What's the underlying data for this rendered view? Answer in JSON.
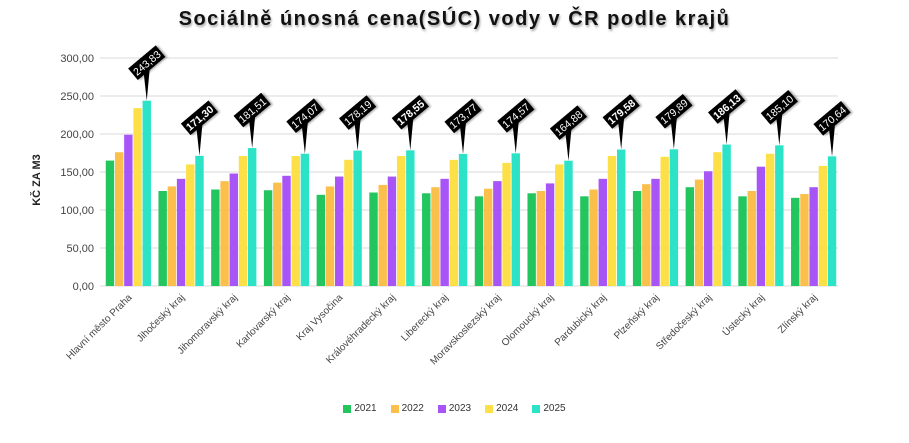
{
  "chart_data": {
    "type": "bar",
    "title": "Sociálně únosná cena(SÚC) vody v ČR podle krajů",
    "xlabel": "",
    "ylabel": "KČ ZA M3",
    "ylim": [
      0,
      300
    ],
    "yticks": [
      "0,00",
      "50,00",
      "100,00",
      "150,00",
      "200,00",
      "250,00",
      "300,00"
    ],
    "grid": true,
    "legend_position": "bottom",
    "categories": [
      "Hlavní město Praha",
      "Jihočeský kraj",
      "Jihomoravský kraj",
      "Karlovarský kraj",
      "Kraj Vysočina",
      "Královéhradecký kraj",
      "Liberecký kraj",
      "Moravskoslezský kraj",
      "Olomoucký kraj",
      "Pardubický kraj",
      "Plzeňský kraj",
      "Středočeský kraj",
      "Ústecký kraj",
      "Zlínský kraj"
    ],
    "series": [
      {
        "name": "2021",
        "color": "#22c55e",
        "values": [
          165,
          125,
          127,
          126,
          120,
          123,
          122,
          118,
          122,
          118,
          125,
          130,
          118,
          116
        ]
      },
      {
        "name": "2022",
        "color": "#fbbf4c",
        "values": [
          176,
          131,
          138,
          136,
          131,
          133,
          130,
          128,
          125,
          127,
          134,
          140,
          125,
          121
        ]
      },
      {
        "name": "2023",
        "color": "#a855f7",
        "values": [
          199,
          141,
          148,
          145,
          144,
          144,
          141,
          138,
          135,
          141,
          141,
          151,
          157,
          130
        ]
      },
      {
        "name": "2024",
        "color": "#fde047",
        "values": [
          234,
          160,
          171,
          171,
          166,
          171,
          166,
          162,
          160,
          171,
          170,
          176,
          174,
          158
        ]
      },
      {
        "name": "2025",
        "color": "#2de3c7",
        "values": [
          243.83,
          171.3,
          181.51,
          174.07,
          178.19,
          178.55,
          173.77,
          174.57,
          164.88,
          179.58,
          179.89,
          186.13,
          185.1,
          170.64
        ]
      }
    ],
    "data_labels": [
      "243,83",
      "171,30",
      "181,51",
      "174,07",
      "178,19",
      "178,55",
      "173,77",
      "174,57",
      "164,88",
      "179,58",
      "179,89",
      "186,13",
      "185,10",
      "170,64"
    ],
    "data_labels_bold": [
      false,
      true,
      false,
      false,
      false,
      true,
      false,
      false,
      false,
      true,
      false,
      true,
      false,
      false
    ]
  }
}
